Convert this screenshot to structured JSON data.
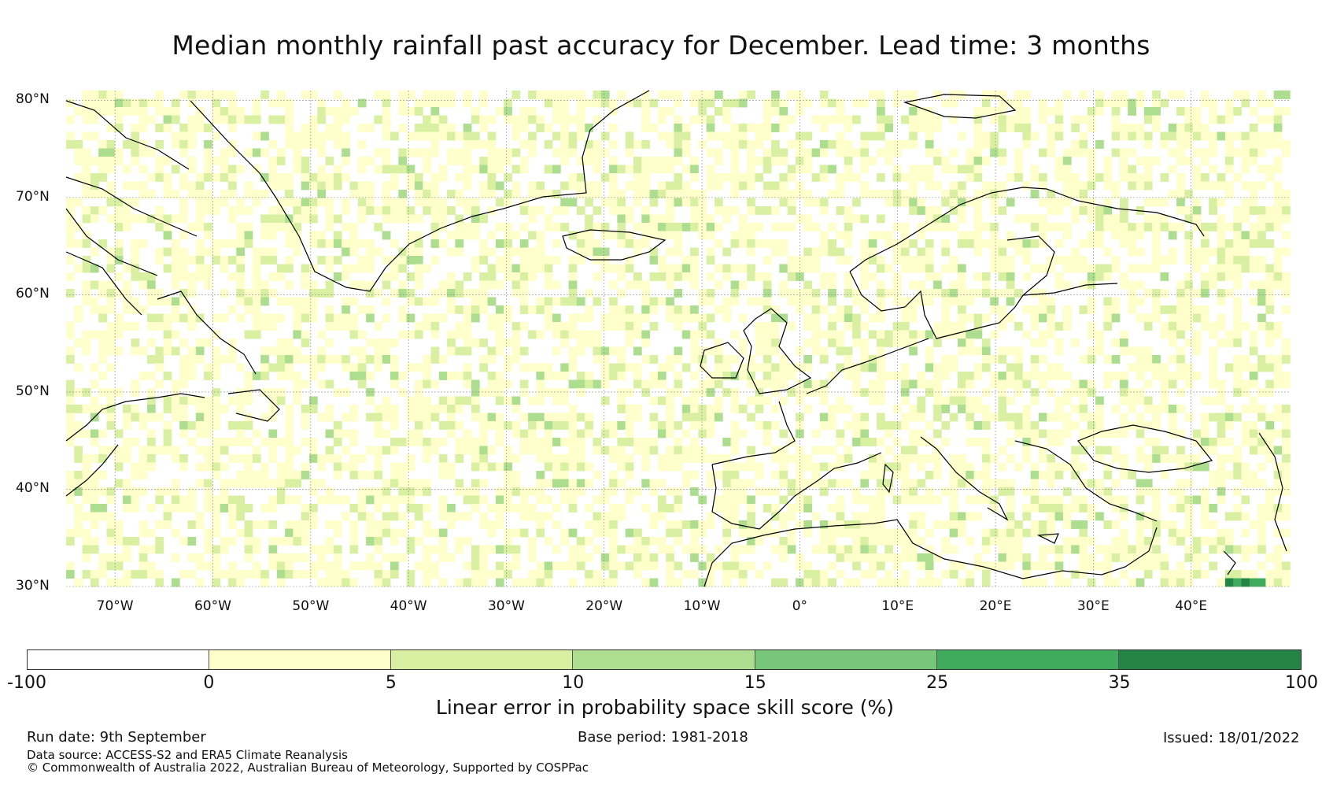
{
  "title": "Median monthly rainfall past accuracy for December. Lead time: 3 months",
  "map": {
    "lat_labels": [
      "80°N",
      "70°N",
      "60°N",
      "50°N",
      "40°N",
      "30°N"
    ],
    "lon_labels": [
      "70°W",
      "60°W",
      "50°W",
      "40°W",
      "30°W",
      "20°W",
      "10°W",
      "0°",
      "10°E",
      "20°E",
      "30°E",
      "40°E"
    ],
    "extent": {
      "lon_min": -75,
      "lon_max": 50,
      "lat_min": 30,
      "lat_max": 81
    }
  },
  "colorbar": {
    "ticks": [
      "-100",
      "0",
      "5",
      "10",
      "15",
      "25",
      "35",
      "100"
    ],
    "label": "Linear error in probability space skill score (%)",
    "segments": [
      {
        "from": -100,
        "to": 0,
        "color": "#ffffff"
      },
      {
        "from": 0,
        "to": 5,
        "color": "#ffffcc"
      },
      {
        "from": 5,
        "to": 10,
        "color": "#d9f0a3"
      },
      {
        "from": 10,
        "to": 15,
        "color": "#addd8e"
      },
      {
        "from": 15,
        "to": 25,
        "color": "#78c679"
      },
      {
        "from": 25,
        "to": 35,
        "color": "#41ab5d"
      },
      {
        "from": 35,
        "to": 100,
        "color": "#238443"
      }
    ]
  },
  "footer": {
    "run_date": "Run date: 9th September",
    "base_period": "Base period: 1981-2018",
    "issued": "Issued: 18/01/2022",
    "data_source": "Data source: ACCESS-S2 and ERA5 Climate Reanalysis",
    "copyright": "© Commonwealth of Australia 2022, Australian Bureau of Meteorology, Supported by COSPPac"
  }
}
